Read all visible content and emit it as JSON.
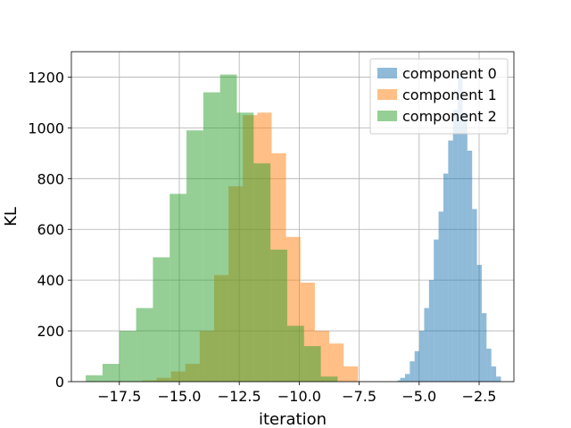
{
  "chart_data": {
    "type": "histogram",
    "xlabel": "iteration",
    "ylabel": "KL",
    "xlim": [
      -19.5,
      -1.05
    ],
    "ylim": [
      0,
      1300
    ],
    "xticks": [
      -17.5,
      -15.0,
      -12.5,
      -10.0,
      -7.5,
      -5.0,
      -2.5
    ],
    "xtick_labels": [
      "−17.5",
      "−15.0",
      "−12.5",
      "−10.0",
      "−7.5",
      "−5.0",
      "−2.5"
    ],
    "yticks": [
      0,
      200,
      400,
      600,
      800,
      1000,
      1200
    ],
    "ytick_labels": [
      "0",
      "200",
      "400",
      "600",
      "800",
      "1000",
      "1200"
    ],
    "grid": true,
    "legend_position": "top-right",
    "series": [
      {
        "name": "component 0",
        "color": "#1f77b4",
        "alpha": 0.5,
        "bin_edges": [
          -5.9,
          -5.79,
          -5.59,
          -5.39,
          -5.19,
          -4.99,
          -4.79,
          -4.59,
          -4.39,
          -4.19,
          -3.99,
          -3.79,
          -3.59,
          -3.39,
          -3.19,
          -2.99,
          -2.79,
          -2.59,
          -2.39,
          -2.19,
          -1.99,
          -1.79,
          -1.59
        ],
        "counts": [
          5,
          15,
          30,
          80,
          120,
          200,
          290,
          400,
          560,
          670,
          820,
          950,
          1070,
          1200,
          1060,
          910,
          680,
          460,
          270,
          130,
          60,
          20
        ]
      },
      {
        "name": "component 1",
        "color": "#ff7f0e",
        "alpha": 0.5,
        "bin_edges": [
          -16.55,
          -15.95,
          -15.35,
          -14.75,
          -14.15,
          -13.55,
          -12.95,
          -12.35,
          -11.75,
          -11.15,
          -10.55,
          -9.95,
          -9.35,
          -8.75,
          -8.15,
          -7.55
        ],
        "counts": [
          5,
          15,
          40,
          70,
          200,
          420,
          770,
          1050,
          1060,
          900,
          570,
          390,
          200,
          150,
          60
        ]
      },
      {
        "name": "component 2",
        "color": "#2ca02c",
        "alpha": 0.5,
        "bin_edges": [
          -18.9,
          -18.2,
          -17.5,
          -16.8,
          -16.1,
          -15.4,
          -14.7,
          -14.0,
          -13.3,
          -12.6,
          -11.9,
          -11.2,
          -10.5,
          -9.8,
          -9.1,
          -8.4
        ],
        "counts": [
          25,
          70,
          200,
          290,
          490,
          740,
          990,
          1140,
          1210,
          1060,
          860,
          520,
          220,
          140,
          20
        ]
      }
    ]
  }
}
